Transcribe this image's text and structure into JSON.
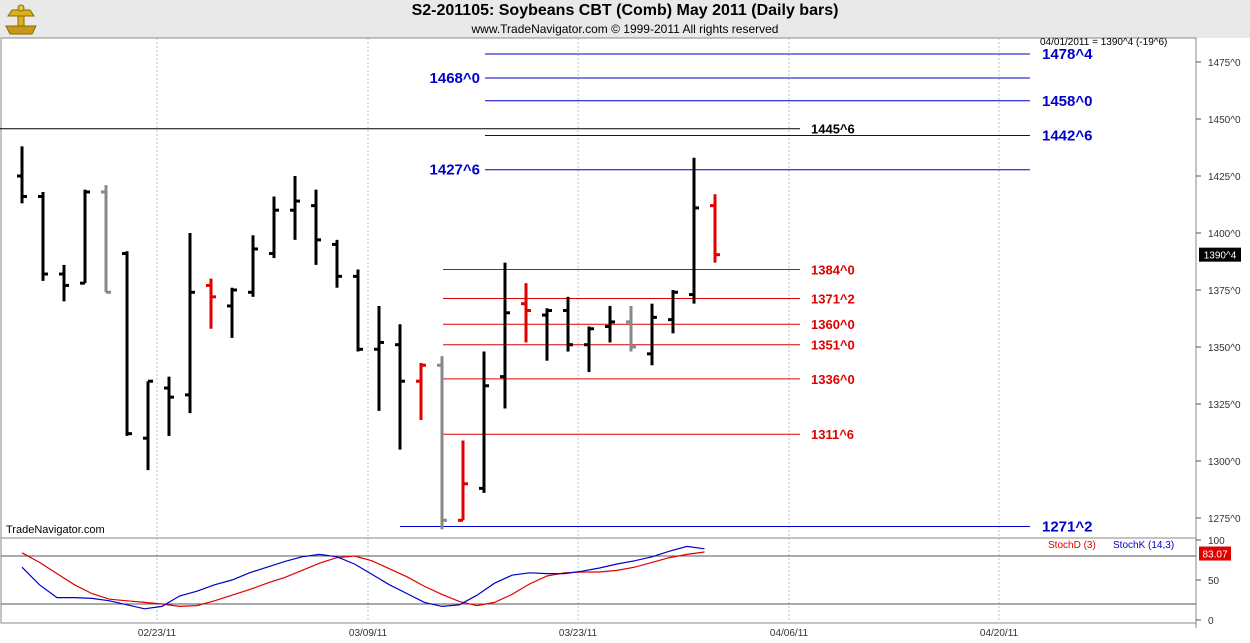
{
  "header": {
    "title": "S2-201105:  Soybeans CBT (Comb) May 2011  (Daily bars)",
    "subtitle": "www.TradeNavigator.com © 1999-2011 All rights reserved",
    "info_line": "04/01/2011 = 1390^4 (-19^6)",
    "watermark": "TradeNavigator.com"
  },
  "colors": {
    "up_bar": "#000000",
    "down_bar": "#e00000",
    "neutral_bar": "#888888",
    "support_line": "#e00000",
    "resistance_line": "#0000cc",
    "stoch_d": "#e00000",
    "stoch_k": "#0000cc"
  },
  "chart_data": [
    {
      "type": "ohlc",
      "title": "S2-201105:  Soybeans CBT (Comb) May 2011  (Daily bars)",
      "x_tick_labels": [
        "02/23/11",
        "03/09/11",
        "03/23/11",
        "04/06/11",
        "04/20/11"
      ],
      "y_tick_labels": [
        "1475^0",
        "1450^0",
        "1425^0",
        "1400^0",
        "1375^0",
        "1350^0",
        "1325^0",
        "1300^0",
        "1275^0"
      ],
      "y_ticks": [
        1475,
        1450,
        1425,
        1400,
        1375,
        1350,
        1325,
        1300,
        1275
      ],
      "ylim": [
        1263,
        1488
      ],
      "last_price_label": "1390^4",
      "last_price": 1390.5,
      "bars": [
        {
          "o": 1425,
          "h": 1438,
          "l": 1413,
          "c": 1416,
          "color": "up"
        },
        {
          "o": 1416,
          "h": 1418,
          "l": 1379,
          "c": 1382,
          "color": "up"
        },
        {
          "o": 1382,
          "h": 1386,
          "l": 1370,
          "c": 1377,
          "color": "up"
        },
        {
          "o": 1378,
          "h": 1419,
          "l": 1378,
          "c": 1418,
          "color": "up"
        },
        {
          "o": 1418,
          "h": 1421,
          "l": 1374,
          "c": 1374,
          "color": "neutral"
        },
        {
          "o": 1391,
          "h": 1392,
          "l": 1311,
          "c": 1312,
          "color": "up"
        },
        {
          "o": 1310,
          "h": 1335,
          "l": 1296,
          "c": 1335,
          "color": "up"
        },
        {
          "o": 1332,
          "h": 1337,
          "l": 1311,
          "c": 1328,
          "color": "up"
        },
        {
          "o": 1329,
          "h": 1400,
          "l": 1321,
          "c": 1374,
          "color": "up"
        },
        {
          "o": 1377,
          "h": 1380,
          "l": 1358,
          "c": 1372,
          "color": "down"
        },
        {
          "o": 1368,
          "h": 1376,
          "l": 1354,
          "c": 1375,
          "color": "up"
        },
        {
          "o": 1374,
          "h": 1399,
          "l": 1372,
          "c": 1393,
          "color": "up"
        },
        {
          "o": 1391,
          "h": 1416,
          "l": 1389,
          "c": 1410,
          "color": "up"
        },
        {
          "o": 1410,
          "h": 1425,
          "l": 1397,
          "c": 1414,
          "color": "up"
        },
        {
          "o": 1412,
          "h": 1419,
          "l": 1386,
          "c": 1397,
          "color": "up"
        },
        {
          "o": 1395,
          "h": 1397,
          "l": 1376,
          "c": 1381,
          "color": "up"
        },
        {
          "o": 1381,
          "h": 1384,
          "l": 1348,
          "c": 1349,
          "color": "up"
        },
        {
          "o": 1349,
          "h": 1368,
          "l": 1322,
          "c": 1352,
          "color": "up"
        },
        {
          "o": 1351,
          "h": 1360,
          "l": 1305,
          "c": 1335,
          "color": "up"
        },
        {
          "o": 1335,
          "h": 1343,
          "l": 1318,
          "c": 1342,
          "color": "down"
        },
        {
          "o": 1342,
          "h": 1346,
          "l": 1270,
          "c": 1274,
          "color": "neutral"
        },
        {
          "o": 1274,
          "h": 1309,
          "l": 1274,
          "c": 1290,
          "color": "down"
        },
        {
          "o": 1288,
          "h": 1348,
          "l": 1286,
          "c": 1333,
          "color": "up"
        },
        {
          "o": 1337,
          "h": 1387,
          "l": 1323,
          "c": 1365,
          "color": "up"
        },
        {
          "o": 1369,
          "h": 1378,
          "l": 1352,
          "c": 1366,
          "color": "down"
        },
        {
          "o": 1364,
          "h": 1367,
          "l": 1344,
          "c": 1366,
          "color": "up"
        },
        {
          "o": 1366,
          "h": 1372,
          "l": 1348,
          "c": 1351,
          "color": "up"
        },
        {
          "o": 1351,
          "h": 1359,
          "l": 1339,
          "c": 1358,
          "color": "up"
        },
        {
          "o": 1359,
          "h": 1368,
          "l": 1352,
          "c": 1361,
          "color": "up"
        },
        {
          "o": 1361,
          "h": 1368,
          "l": 1348,
          "c": 1350,
          "color": "neutral"
        },
        {
          "o": 1347,
          "h": 1369,
          "l": 1342,
          "c": 1363,
          "color": "up"
        },
        {
          "o": 1362,
          "h": 1375,
          "l": 1356,
          "c": 1374,
          "color": "up"
        },
        {
          "o": 1373,
          "h": 1433,
          "l": 1369,
          "c": 1411,
          "color": "up"
        },
        {
          "o": 1412,
          "h": 1417,
          "l": 1387,
          "c": 1390.5,
          "color": "down"
        }
      ],
      "levels": [
        {
          "label": "1478^4",
          "value": 1478.5,
          "color": "blue"
        },
        {
          "label": "1468^0",
          "value": 1468,
          "color": "blue"
        },
        {
          "label": "1458^0",
          "value": 1458,
          "color": "blue"
        },
        {
          "label": "1445^6",
          "value": 1445.75,
          "color": "black"
        },
        {
          "label": "1442^6",
          "value": 1442.75,
          "color": "blue"
        },
        {
          "label": "1427^6",
          "value": 1427.75,
          "color": "blue"
        },
        {
          "label": "1384^0",
          "value": 1384,
          "color": "red"
        },
        {
          "label": "1371^2",
          "value": 1371.25,
          "color": "red"
        },
        {
          "label": "1360^0",
          "value": 1360,
          "color": "red"
        },
        {
          "label": "1351^0",
          "value": 1351,
          "color": "red"
        },
        {
          "label": "1336^0",
          "value": 1336,
          "color": "red"
        },
        {
          "label": "1311^6",
          "value": 1311.75,
          "color": "red"
        },
        {
          "label": "1271^2",
          "value": 1271.25,
          "color": "blue"
        }
      ]
    },
    {
      "type": "line",
      "legend": [
        "StochD (3)",
        "StochK (14,3)"
      ],
      "y_tick_labels": [
        "100",
        "50",
        "0"
      ],
      "y_ticks": [
        100,
        50,
        0
      ],
      "ylim": [
        0,
        100
      ],
      "reference_lines": [
        80,
        20
      ],
      "last_value_label": "83.07",
      "last_value": 83.07,
      "series": [
        {
          "name": "StochD (3)",
          "values": [
            84,
            72,
            58,
            44,
            33,
            26,
            24,
            22,
            20,
            17,
            18,
            24,
            31,
            38,
            46,
            53,
            62,
            71,
            78,
            80,
            74,
            64,
            54,
            42,
            32,
            23,
            18,
            22,
            32,
            45,
            55,
            59,
            60,
            60,
            62,
            66,
            72,
            78,
            82,
            85
          ]
        },
        {
          "name": "StochK (14,3)",
          "values": [
            66,
            44,
            28,
            28,
            27,
            24,
            19,
            14,
            17,
            30,
            36,
            44,
            50,
            59,
            66,
            73,
            79,
            82,
            79,
            70,
            57,
            44,
            33,
            22,
            17,
            19,
            31,
            46,
            56,
            59,
            58,
            58,
            61,
            65,
            70,
            74,
            79,
            86,
            92,
            89
          ]
        }
      ]
    }
  ]
}
